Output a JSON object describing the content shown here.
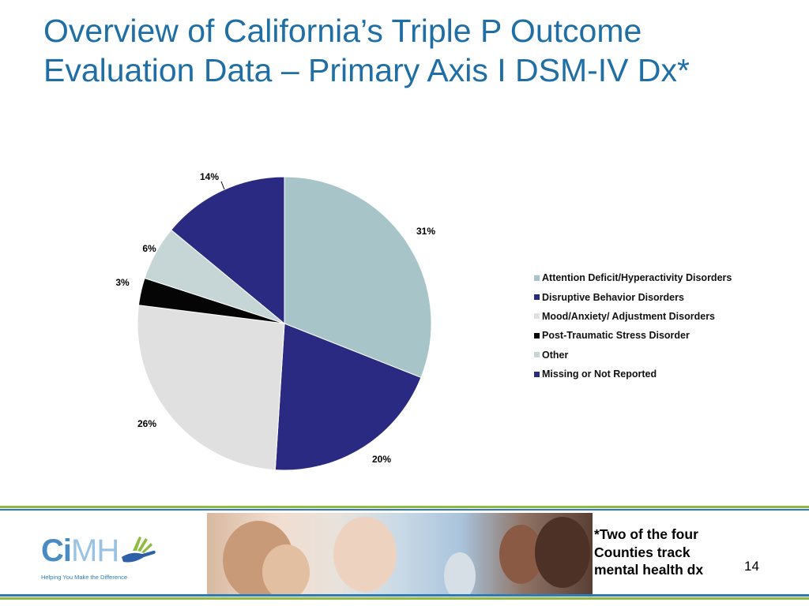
{
  "slide": {
    "title": "Overview of California’s Triple P Outcome Evaluation Data – Primary Axis I DSM-IV Dx*",
    "footnote": "*Two of the four Counties track mental health dx",
    "page_number": "14"
  },
  "logo": {
    "text_main": "Ci",
    "text_light": "MH",
    "tagline": "Helping You Make the Difference"
  },
  "colors": {
    "title": "#1f6fa6",
    "accent_green": "#8dbb3f",
    "accent_blue": "#2f7bb3"
  },
  "chart_data": {
    "type": "pie",
    "title": "",
    "legend_position": "right",
    "slices": [
      {
        "label": "Attention Deficit/Hyperactivity Disorders",
        "value": 31,
        "display": "31%",
        "color": "#a7c4c9"
      },
      {
        "label": "Disruptive Behavior Disorders",
        "value": 20,
        "display": "20%",
        "color": "#2b2a82"
      },
      {
        "label": "Mood/Anxiety/ Adjustment Disorders",
        "value": 26,
        "display": "26%",
        "color": "#e0e0e0"
      },
      {
        "label": "Post-Traumatic Stress Disorder",
        "value": 3,
        "display": "3%",
        "color": "#050505"
      },
      {
        "label": "Other",
        "value": 6,
        "display": "6%",
        "color": "#c6d6d7"
      },
      {
        "label": "Missing or Not Reported",
        "value": 14,
        "display": "14%",
        "color": "#2b2a82"
      }
    ]
  }
}
